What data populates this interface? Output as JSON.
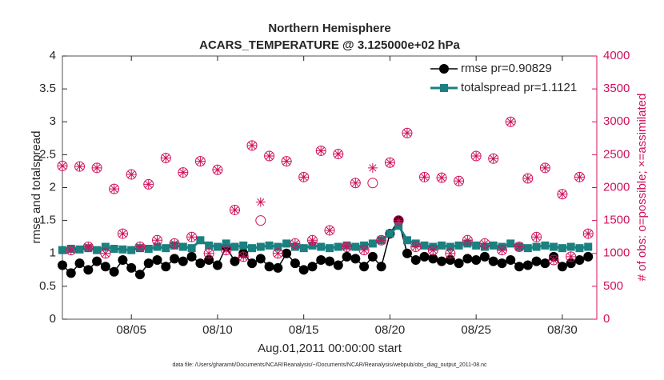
{
  "chart_data": {
    "type": "line",
    "title": "Northern Hemisphere",
    "subtitle": "ACARS_TEMPERATURE @ 3.125000e+02 hPa",
    "xlabel": "Aug.01,2011 00:00:00 start",
    "ylabel": "rmse and totalspread",
    "y2label": "# of obs: o=possible; ×=assimilated",
    "footnote": "data file: /Users/gharamti/Documents/NCAR/Reanalysis/~/Documents/NCAR/Reanalysis/webpub/obs_diag_output_2011-08.nc",
    "xlim": [
      1,
      32
    ],
    "xticks": [
      {
        "value": 5,
        "label": "08/05"
      },
      {
        "value": 10,
        "label": "08/10"
      },
      {
        "value": 15,
        "label": "08/15"
      },
      {
        "value": 20,
        "label": "08/20"
      },
      {
        "value": 25,
        "label": "08/25"
      },
      {
        "value": 30,
        "label": "08/30"
      }
    ],
    "ylim": [
      0,
      4
    ],
    "yticks": [
      0,
      0.5,
      1,
      1.5,
      2,
      2.5,
      3,
      3.5,
      4
    ],
    "y2lim": [
      0,
      4000
    ],
    "y2ticks": [
      0,
      500,
      1000,
      1500,
      2000,
      2500,
      3000,
      3500,
      4000
    ],
    "x": [
      1,
      1.5,
      2,
      2.5,
      3,
      3.5,
      4,
      4.5,
      5,
      5.5,
      6,
      6.5,
      7,
      7.5,
      8,
      8.5,
      9,
      9.5,
      10,
      10.5,
      11,
      11.5,
      12,
      12.5,
      13,
      13.5,
      14,
      14.5,
      15,
      15.5,
      16,
      16.5,
      17,
      17.5,
      18,
      18.5,
      19,
      19.5,
      20,
      20.5,
      21,
      21.5,
      22,
      22.5,
      23,
      23.5,
      24,
      24.5,
      25,
      25.5,
      26,
      26.5,
      27,
      27.5,
      28,
      28.5,
      29,
      29.5,
      30,
      30.5,
      31,
      31.5
    ],
    "series": [
      {
        "name": "rmse pr=0.90829",
        "color": "#000000",
        "marker": "circle",
        "values": [
          0.82,
          0.7,
          0.85,
          0.75,
          0.88,
          0.8,
          0.72,
          0.9,
          0.78,
          0.68,
          0.85,
          0.9,
          0.8,
          0.92,
          0.88,
          0.95,
          0.85,
          0.9,
          0.82,
          1.1,
          0.88,
          1.0,
          0.85,
          0.92,
          0.8,
          0.78,
          1.0,
          0.85,
          0.75,
          0.8,
          0.9,
          0.88,
          0.82,
          0.95,
          0.92,
          0.8,
          0.95,
          0.8,
          1.3,
          1.5,
          1.0,
          0.9,
          0.95,
          0.92,
          0.88,
          0.9,
          0.85,
          0.92,
          0.9,
          0.95,
          0.88,
          0.85,
          0.9,
          0.8,
          0.82,
          0.88,
          0.85,
          0.95,
          0.8,
          0.85,
          0.9,
          0.95
        ]
      },
      {
        "name": "totalspread pr=1.1121",
        "color": "#1a8080",
        "marker": "square",
        "values": [
          1.05,
          1.07,
          1.06,
          1.08,
          1.05,
          1.1,
          1.07,
          1.06,
          1.05,
          1.08,
          1.07,
          1.1,
          1.08,
          1.12,
          1.1,
          1.08,
          1.2,
          1.12,
          1.1,
          1.15,
          1.1,
          1.12,
          1.08,
          1.1,
          1.12,
          1.1,
          1.15,
          1.1,
          1.08,
          1.12,
          1.1,
          1.08,
          1.1,
          1.12,
          1.1,
          1.12,
          1.15,
          1.2,
          1.3,
          1.42,
          1.2,
          1.15,
          1.12,
          1.1,
          1.12,
          1.1,
          1.12,
          1.15,
          1.12,
          1.1,
          1.12,
          1.1,
          1.15,
          1.1,
          1.08,
          1.1,
          1.12,
          1.1,
          1.08,
          1.1,
          1.08,
          1.1
        ]
      },
      {
        "color": "#d0105a",
        "marker": "circle-open",
        "axis": "y2",
        "values": [
          2330,
          1050,
          2320,
          1100,
          2300,
          1000,
          1980,
          1300,
          2200,
          1100,
          2050,
          1200,
          2450,
          1150,
          2230,
          1250,
          2400,
          1000,
          2270,
          1050,
          1660,
          950,
          2640,
          1500,
          2480,
          1000,
          2400,
          1150,
          2160,
          1200,
          2560,
          1350,
          2510,
          1100,
          2070,
          1050,
          2070,
          1200,
          2380,
          1500,
          2830,
          1100,
          2160,
          1050,
          2150,
          1000,
          2100,
          1200,
          2480,
          1150,
          2440,
          1050,
          3000,
          1100,
          2140,
          1250,
          2300,
          900,
          1900,
          950,
          2160,
          1300
        ]
      },
      {
        "color": "#d0105a",
        "marker": "asterisk",
        "axis": "y2",
        "values": [
          2330,
          1050,
          2320,
          1100,
          2300,
          1000,
          1980,
          1300,
          2200,
          1100,
          2050,
          1200,
          2450,
          1150,
          2230,
          1250,
          2400,
          1000,
          2270,
          1050,
          1660,
          950,
          2640,
          1780,
          2480,
          1000,
          2400,
          1150,
          2160,
          1200,
          2560,
          1350,
          2510,
          1100,
          2070,
          1050,
          2300,
          1200,
          2380,
          1500,
          2830,
          1100,
          2160,
          1050,
          2150,
          1000,
          2100,
          1200,
          2480,
          1150,
          2440,
          1050,
          3000,
          1100,
          2140,
          1250,
          2300,
          900,
          1900,
          950,
          2160,
          1300
        ]
      }
    ],
    "legend": "upper right",
    "grid": false
  }
}
